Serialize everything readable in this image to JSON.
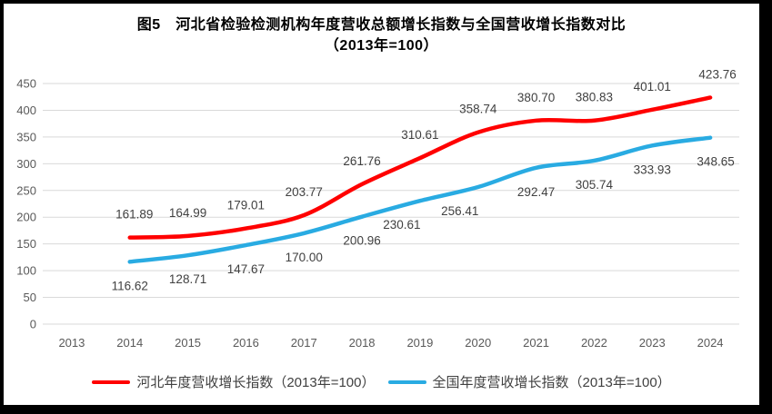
{
  "title": {
    "line1": "图5　河北省检验检测机构年度营收总额增长指数与全国营收增长指数对比",
    "line2": "（2013年=100）"
  },
  "chart_data": {
    "type": "line",
    "x": [
      2013,
      2014,
      2015,
      2016,
      2017,
      2018,
      2019,
      2020,
      2021,
      2022,
      2023,
      2024
    ],
    "series": [
      {
        "name": "河北年度营收增长指数（2013年=100）",
        "color": "#FF0000",
        "values": [
          null,
          161.89,
          164.99,
          179.01,
          203.77,
          261.76,
          310.61,
          358.74,
          380.7,
          380.83,
          401.01,
          423.76
        ],
        "label_position": "above",
        "label_dx": [
          0,
          5,
          0,
          0,
          0,
          0,
          0,
          0,
          0,
          0,
          0,
          8
        ]
      },
      {
        "name": "全国年度营收增长指数（2013年=100）",
        "color": "#29ABE2",
        "values": [
          null,
          116.62,
          128.71,
          147.67,
          170.0,
          200.96,
          230.61,
          256.41,
          292.47,
          305.74,
          333.93,
          348.65
        ],
        "label_position": "below",
        "label_dx": [
          0,
          0,
          0,
          0,
          0,
          0,
          -20,
          -20,
          0,
          0,
          0,
          6
        ]
      }
    ],
    "ylim": [
      0,
      450
    ],
    "ytick_step": 50,
    "grid": true,
    "legend_position": "bottom",
    "smoothed": true
  },
  "style": {
    "frame_color": "#000000",
    "grid_color": "#D9D9D9",
    "axis_label_color": "#595959",
    "data_label_color": "#404040",
    "line_width": 4.5
  }
}
